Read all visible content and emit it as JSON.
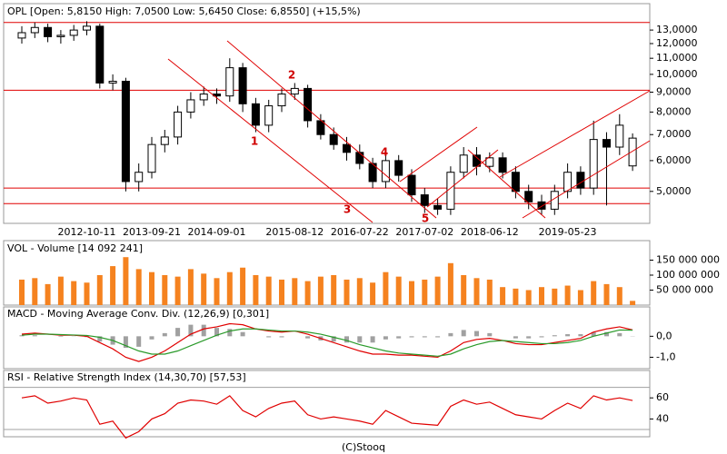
{
  "chart_data": [
    {
      "type": "candlestick",
      "title": "OPL [Open: 5,8150  High: 7,0500  Low: 5,6450  Close: 6,8550] (+15,5%)",
      "categories": [
        null,
        null,
        null,
        null,
        null,
        "2012-10-11",
        null,
        null,
        null,
        null,
        "2013-09-21",
        null,
        null,
        null,
        null,
        "2014-09-01",
        null,
        null,
        null,
        null,
        null,
        "2015-08-12",
        null,
        null,
        null,
        null,
        "2016-07-22",
        null,
        null,
        null,
        null,
        "2017-07-02",
        null,
        null,
        null,
        null,
        "2018-06-12",
        null,
        null,
        null,
        null,
        null,
        "2019-05-23",
        null,
        null,
        null,
        null,
        null
      ],
      "open": [
        12.4,
        12.8,
        13.2,
        12.5,
        12.6,
        13.0,
        13.3,
        9.5,
        9.6,
        5.3,
        5.6,
        6.6,
        6.9,
        8.0,
        8.6,
        8.9,
        8.8,
        10.4,
        8.4,
        7.4,
        8.3,
        8.9,
        9.2,
        7.6,
        7.0,
        6.6,
        6.3,
        5.9,
        5.3,
        6.0,
        5.5,
        4.9,
        4.6,
        4.5,
        5.6,
        6.2,
        5.8,
        6.1,
        5.6,
        5.0,
        4.7,
        4.5,
        5.0,
        5.6,
        5.1,
        6.8,
        6.5,
        5.815
      ],
      "high": [
        13.3,
        13.6,
        13.5,
        13.0,
        13.4,
        13.7,
        13.5,
        10.0,
        9.8,
        5.9,
        6.9,
        7.2,
        8.3,
        9.0,
        9.3,
        9.2,
        11.0,
        10.7,
        8.7,
        8.6,
        9.2,
        9.5,
        9.4,
        7.9,
        7.3,
        6.9,
        6.6,
        6.1,
        6.3,
        6.2,
        5.7,
        5.1,
        4.8,
        5.8,
        6.5,
        6.5,
        6.3,
        6.3,
        5.8,
        5.2,
        4.9,
        5.2,
        5.9,
        5.8,
        7.6,
        7.1,
        7.9,
        7.05
      ],
      "low": [
        12.0,
        12.4,
        12.1,
        12.0,
        12.2,
        12.6,
        9.2,
        9.1,
        5.0,
        5.0,
        5.4,
        6.3,
        6.6,
        7.7,
        8.3,
        8.4,
        8.5,
        8.0,
        7.1,
        7.1,
        8.0,
        8.6,
        7.3,
        6.8,
        6.4,
        6.0,
        5.7,
        5.1,
        5.1,
        5.3,
        4.7,
        4.4,
        4.35,
        4.35,
        5.4,
        5.5,
        5.6,
        5.4,
        4.8,
        4.5,
        4.35,
        4.35,
        4.8,
        4.9,
        4.9,
        4.6,
        6.2,
        5.645
      ],
      "close": [
        12.8,
        13.2,
        12.5,
        12.6,
        13.0,
        13.3,
        9.5,
        9.6,
        5.3,
        5.6,
        6.6,
        6.9,
        8.0,
        8.6,
        8.9,
        8.8,
        10.4,
        8.4,
        7.4,
        8.3,
        8.9,
        9.2,
        7.6,
        7.0,
        6.6,
        6.3,
        5.9,
        5.3,
        6.0,
        5.5,
        4.9,
        4.6,
        4.5,
        5.6,
        6.2,
        5.8,
        6.1,
        5.6,
        5.0,
        4.7,
        4.5,
        5.0,
        5.6,
        5.1,
        6.8,
        6.5,
        7.4,
        6.855
      ],
      "log": true,
      "ylim": [
        4.16,
        13.8
      ],
      "yticks": [
        {
          "value": 5,
          "label": "5,0000"
        },
        {
          "value": 6,
          "label": "6,0000"
        },
        {
          "value": 7,
          "label": "7,0000"
        },
        {
          "value": 8,
          "label": "8,0000"
        },
        {
          "value": 9,
          "label": "9,0000"
        },
        {
          "value": 10,
          "label": "10,0000"
        },
        {
          "value": 11,
          "label": "11,0000"
        },
        {
          "value": 12,
          "label": "12,0000"
        },
        {
          "value": 13,
          "label": "13,0000"
        }
      ],
      "levels": [
        13.6,
        9.1,
        5.1,
        4.65
      ],
      "level_color": "#e00000",
      "annotations": [
        "1",
        "2",
        "3",
        "4",
        "5"
      ]
    },
    {
      "type": "bar",
      "title": "VOL - Volume [14 092 241]",
      "color": "#f5821f",
      "values": [
        85000000,
        90000000,
        70000000,
        95000000,
        80000000,
        75000000,
        100000000,
        130000000,
        160000000,
        120000000,
        110000000,
        100000000,
        95000000,
        120000000,
        105000000,
        90000000,
        110000000,
        125000000,
        100000000,
        95000000,
        85000000,
        90000000,
        80000000,
        95000000,
        100000000,
        85000000,
        90000000,
        75000000,
        110000000,
        95000000,
        80000000,
        85000000,
        95000000,
        140000000,
        100000000,
        90000000,
        85000000,
        60000000,
        55000000,
        50000000,
        60000000,
        55000000,
        65000000,
        50000000,
        80000000,
        70000000,
        60000000,
        14092241
      ],
      "ylim": [
        0,
        200000000
      ],
      "yticks": [
        {
          "value": 50000000,
          "label": "50 000 000"
        },
        {
          "value": 100000000,
          "label": "100 000 000"
        },
        {
          "value": 150000000,
          "label": "150 000 000"
        }
      ]
    },
    {
      "type": "line",
      "title": "MACD - Moving Average Conv. Div. (12,26,9) [0,301]",
      "series": [
        {
          "color": "#e00000",
          "values": [
            0.1,
            0.15,
            0.1,
            0.05,
            0.05,
            0.0,
            -0.3,
            -0.6,
            -1.0,
            -1.2,
            -1.0,
            -0.7,
            -0.3,
            0.1,
            0.35,
            0.45,
            0.6,
            0.55,
            0.35,
            0.25,
            0.2,
            0.25,
            0.1,
            -0.1,
            -0.3,
            -0.5,
            -0.7,
            -0.85,
            -0.85,
            -0.9,
            -0.9,
            -0.95,
            -1.0,
            -0.7,
            -0.3,
            -0.15,
            -0.1,
            -0.2,
            -0.35,
            -0.4,
            -0.4,
            -0.3,
            -0.2,
            -0.1,
            0.2,
            0.35,
            0.45,
            0.301
          ]
        },
        {
          "color": "#2a9a2a",
          "values": [
            0.05,
            0.1,
            0.1,
            0.08,
            0.06,
            0.04,
            -0.05,
            -0.2,
            -0.45,
            -0.7,
            -0.85,
            -0.85,
            -0.7,
            -0.45,
            -0.2,
            0.05,
            0.25,
            0.35,
            0.35,
            0.3,
            0.25,
            0.25,
            0.2,
            0.1,
            -0.05,
            -0.2,
            -0.4,
            -0.55,
            -0.7,
            -0.8,
            -0.85,
            -0.9,
            -0.95,
            -0.85,
            -0.6,
            -0.4,
            -0.25,
            -0.2,
            -0.25,
            -0.3,
            -0.35,
            -0.35,
            -0.3,
            -0.2,
            0.0,
            0.15,
            0.3,
            0.29
          ]
        }
      ],
      "histogram": [
        0.05,
        0.05,
        0,
        -0.03,
        -0.01,
        -0.04,
        -0.25,
        -0.4,
        -0.55,
        -0.5,
        -0.15,
        0.15,
        0.4,
        0.55,
        0.55,
        0.4,
        0.35,
        0.2,
        0,
        -0.05,
        -0.05,
        0,
        -0.1,
        -0.2,
        -0.25,
        -0.3,
        -0.3,
        -0.3,
        -0.15,
        -0.1,
        -0.05,
        -0.05,
        -0.05,
        0.15,
        0.3,
        0.25,
        0.15,
        0,
        -0.1,
        -0.1,
        -0.05,
        0.05,
        0.1,
        0.1,
        0.2,
        0.2,
        0.15,
        0.011
      ],
      "histogram_color": "#a0a0a0",
      "ylim": [
        -1.5,
        1.4
      ],
      "yticks": [
        {
          "value": -1,
          "label": "-1,0"
        },
        {
          "value": 0,
          "label": "0,0"
        }
      ]
    },
    {
      "type": "line",
      "title": "RSI - Relative Strength Index (14,30,70) [57,53]",
      "series": [
        {
          "color": "#e00000",
          "values": [
            60,
            62,
            55,
            57,
            60,
            58,
            35,
            38,
            22,
            28,
            40,
            45,
            55,
            58,
            57,
            54,
            62,
            48,
            42,
            50,
            55,
            57,
            44,
            40,
            42,
            40,
            38,
            35,
            48,
            42,
            36,
            35,
            34,
            52,
            58,
            54,
            56,
            50,
            44,
            42,
            40,
            48,
            55,
            50,
            62,
            58,
            60,
            57.53
          ]
        }
      ],
      "levels": [
        30,
        70
      ],
      "level_color": "#a0a0a0",
      "ylim": [
        24,
        86
      ],
      "yticks": [
        40,
        60
      ]
    }
  ],
  "footer": "(C)Stooq"
}
